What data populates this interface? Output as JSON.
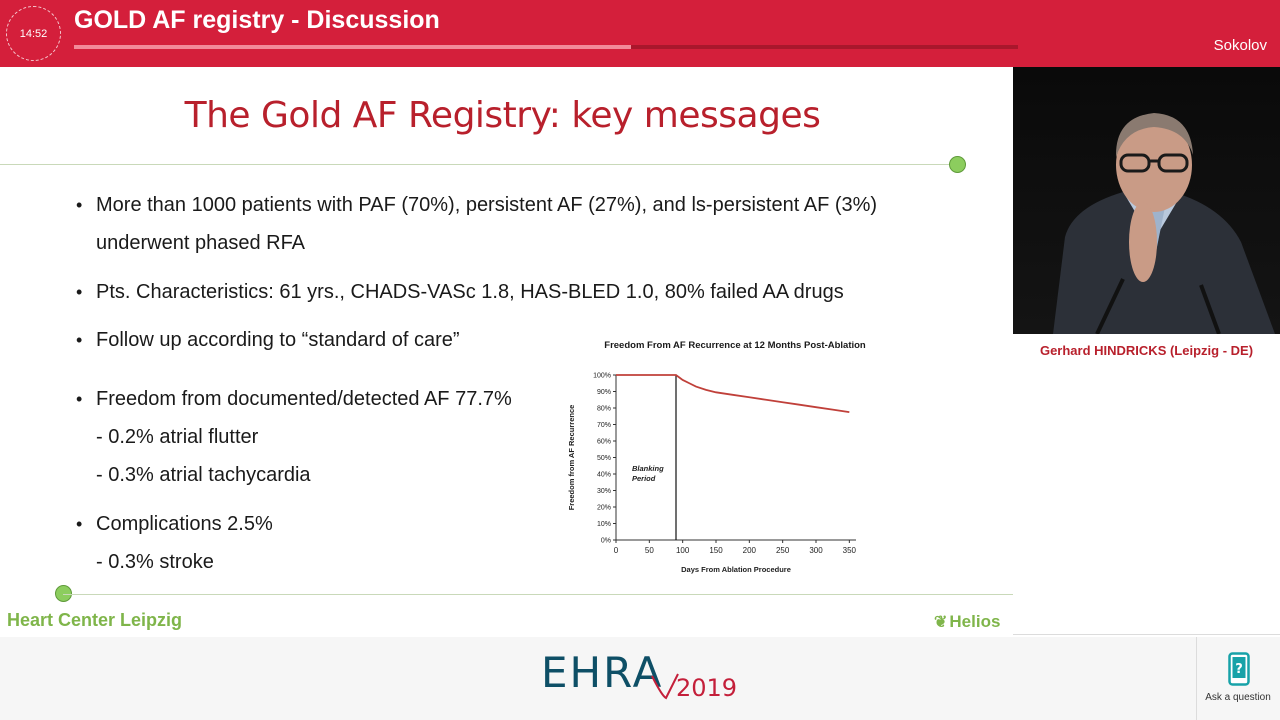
{
  "header": {
    "timer": "14:52",
    "session_title": "GOLD AF registry - Discussion",
    "progress": 0.59,
    "chair": "Sokolov"
  },
  "slide": {
    "title": "The Gold AF Registry: key messages",
    "bullets": [
      {
        "lines": [
          "More than 1000 patients with PAF (70%), persistent AF (27%), and ls-persistent AF (3%)",
          "underwent phased RFA"
        ]
      },
      {
        "lines": [
          "Pts. Characteristics: 61 yrs., CHADS-VASc 1.8, HAS-BLED 1.0, 80% failed AA drugs"
        ]
      },
      {
        "lines": [
          "Follow up according to “standard of care”"
        ]
      },
      {
        "lines": [
          "Freedom from documented/detected AF 77.7%"
        ],
        "subs": [
          "- 0.2% atrial flutter",
          "- 0.3% atrial tachycardia"
        ]
      },
      {
        "lines": [
          "Complications 2.5%"
        ],
        "subs": [
          "- 0.3% stroke"
        ]
      }
    ],
    "footer_left": "Heart Center Leipzig",
    "footer_right": "Helios"
  },
  "chart_data": {
    "type": "line",
    "title": "Freedom From AF Recurrence at 12 Months Post-Ablation",
    "xlabel": "Days From Ablation Procedure",
    "ylabel": "Freedom from AF Recurrence",
    "xlim": [
      0,
      360
    ],
    "ylim": [
      0,
      100
    ],
    "xticks": [
      "0",
      "50",
      "100",
      "150",
      "200",
      "250",
      "300",
      "350"
    ],
    "yticks": [
      "0%",
      "10%",
      "20%",
      "30%",
      "40%",
      "50%",
      "60%",
      "70%",
      "80%",
      "90%",
      "100%"
    ],
    "annotation": {
      "text": [
        "Blanking",
        "Period"
      ],
      "x": 90
    },
    "series": [
      {
        "color": "#c0403a",
        "x": [
          0,
          90,
          95,
          100,
          110,
          120,
          135,
          150,
          175,
          200,
          225,
          250,
          275,
          300,
          325,
          350
        ],
        "y": [
          100,
          100,
          98.5,
          97,
          95,
          93,
          91,
          89.5,
          88,
          86.5,
          85,
          83.5,
          82,
          80.5,
          79,
          77.5
        ]
      }
    ]
  },
  "side": {
    "speaker": "Gerhard HINDRICKS (Leipzig - DE)",
    "ask_label": "Ask a question"
  },
  "footer": {
    "event": "EHRA",
    "year": "2019"
  }
}
